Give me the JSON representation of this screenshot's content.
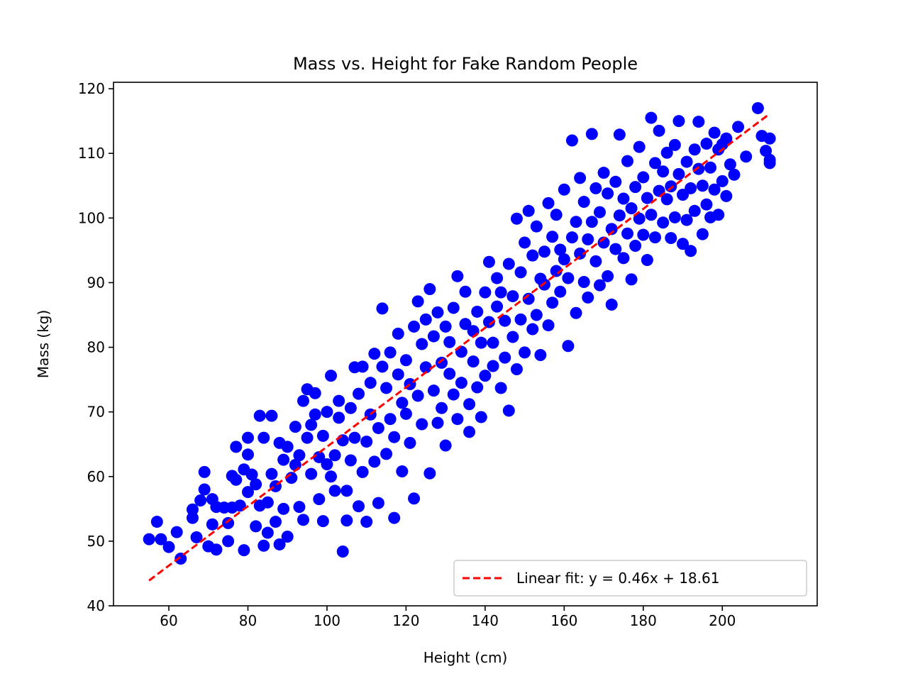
{
  "chart_data": {
    "type": "scatter",
    "title": "Mass vs. Height for Fake Random People",
    "xlabel": "Height (cm)",
    "ylabel": "Mass (kg)",
    "xlim": [
      46,
      224
    ],
    "ylim": [
      40,
      121
    ],
    "xticks": [
      60,
      80,
      100,
      120,
      140,
      160,
      180,
      200
    ],
    "yticks": [
      40,
      50,
      60,
      70,
      80,
      90,
      100,
      110,
      120
    ],
    "grid": false,
    "legend_position": "lower-right",
    "marker_color": "#0000ff",
    "fit_color": "#ff0000",
    "fit": {
      "label": "Linear fit: y = 0.46x + 18.61",
      "slope": 0.46,
      "intercept": 18.61,
      "x_range": [
        55,
        212
      ],
      "style": "dashed"
    },
    "points": [
      [
        55,
        50.3
      ],
      [
        57,
        53
      ],
      [
        58,
        50.3
      ],
      [
        60,
        49.1
      ],
      [
        62,
        51.4
      ],
      [
        63,
        47.3
      ],
      [
        66,
        54.9
      ],
      [
        66,
        53.6
      ],
      [
        67,
        50.6
      ],
      [
        68,
        56.3
      ],
      [
        69,
        58
      ],
      [
        69,
        60.7
      ],
      [
        70,
        49.2
      ],
      [
        71,
        52.6
      ],
      [
        71,
        56.5
      ],
      [
        72,
        55.3
      ],
      [
        72,
        48.7
      ],
      [
        74,
        55.2
      ],
      [
        75,
        50
      ],
      [
        75,
        52.8
      ],
      [
        76,
        60.1
      ],
      [
        76,
        55.2
      ],
      [
        77,
        64.6
      ],
      [
        77,
        59.5
      ],
      [
        78,
        55.5
      ],
      [
        79,
        48.6
      ],
      [
        79,
        61.1
      ],
      [
        80,
        66
      ],
      [
        80,
        63.4
      ],
      [
        80,
        57.6
      ],
      [
        81,
        60.3
      ],
      [
        82,
        58.8
      ],
      [
        82,
        52.3
      ],
      [
        83,
        55.5
      ],
      [
        83,
        69.4
      ],
      [
        84,
        66
      ],
      [
        84,
        49.3
      ],
      [
        85,
        51.3
      ],
      [
        85,
        56
      ],
      [
        86,
        60.4
      ],
      [
        86,
        69.4
      ],
      [
        87,
        53
      ],
      [
        87,
        58.5
      ],
      [
        88,
        65.2
      ],
      [
        88,
        49.5
      ],
      [
        89,
        62.6
      ],
      [
        89,
        55
      ],
      [
        90,
        50.7
      ],
      [
        90,
        64.6
      ],
      [
        91,
        59.8
      ],
      [
        92,
        67.7
      ],
      [
        92,
        61.8
      ],
      [
        93,
        55.3
      ],
      [
        93,
        63.3
      ],
      [
        94,
        71.7
      ],
      [
        94,
        53.3
      ],
      [
        95,
        73.5
      ],
      [
        95,
        66
      ],
      [
        96,
        60.4
      ],
      [
        96,
        68
      ],
      [
        97,
        69.6
      ],
      [
        97,
        72.9
      ],
      [
        98,
        56.5
      ],
      [
        98,
        63
      ],
      [
        99,
        53.1
      ],
      [
        99,
        66.3
      ],
      [
        100,
        70
      ],
      [
        100,
        61.9
      ],
      [
        101,
        75.6
      ],
      [
        101,
        60
      ],
      [
        102,
        63.3
      ],
      [
        102,
        57.8
      ],
      [
        103,
        71.7
      ],
      [
        103,
        69.1
      ],
      [
        104,
        65.6
      ],
      [
        104,
        48.4
      ],
      [
        105,
        57.8
      ],
      [
        105,
        53.2
      ],
      [
        106,
        70.6
      ],
      [
        106,
        62.5
      ],
      [
        107,
        76.9
      ],
      [
        107,
        66
      ],
      [
        108,
        55.4
      ],
      [
        108,
        72.8
      ],
      [
        109,
        77
      ],
      [
        109,
        60.7
      ],
      [
        110,
        65.4
      ],
      [
        110,
        53
      ],
      [
        111,
        69.6
      ],
      [
        111,
        74.5
      ],
      [
        112,
        79
      ],
      [
        112,
        62.3
      ],
      [
        113,
        67.5
      ],
      [
        113,
        55.9
      ],
      [
        114,
        86
      ],
      [
        114,
        77
      ],
      [
        115,
        73.7
      ],
      [
        115,
        63.5
      ],
      [
        116,
        79.2
      ],
      [
        116,
        68.9
      ],
      [
        117,
        66.1
      ],
      [
        117,
        53.6
      ],
      [
        118,
        75.8
      ],
      [
        118,
        82.1
      ],
      [
        119,
        60.8
      ],
      [
        119,
        71.4
      ],
      [
        120,
        78
      ],
      [
        120,
        69.7
      ],
      [
        121,
        74.3
      ],
      [
        121,
        65.2
      ],
      [
        122,
        83.2
      ],
      [
        122,
        56.6
      ],
      [
        123,
        87.1
      ],
      [
        123,
        72.5
      ],
      [
        124,
        80.5
      ],
      [
        124,
        68.1
      ],
      [
        125,
        84.3
      ],
      [
        125,
        76.9
      ],
      [
        126,
        89
      ],
      [
        126,
        60.5
      ],
      [
        127,
        73.3
      ],
      [
        127,
        81.7
      ],
      [
        128,
        68.3
      ],
      [
        128,
        85.4
      ],
      [
        129,
        77.6
      ],
      [
        129,
        70.6
      ],
      [
        130,
        83.2
      ],
      [
        130,
        64.8
      ],
      [
        131,
        75.9
      ],
      [
        131,
        80.8
      ],
      [
        132,
        72.7
      ],
      [
        132,
        86.1
      ],
      [
        133,
        68.9
      ],
      [
        133,
        91
      ],
      [
        134,
        79.3
      ],
      [
        134,
        74.5
      ],
      [
        135,
        83.6
      ],
      [
        135,
        88.6
      ],
      [
        136,
        71.2
      ],
      [
        136,
        66.9
      ],
      [
        137,
        77.8
      ],
      [
        137,
        82.5
      ],
      [
        138,
        85.5
      ],
      [
        138,
        73.8
      ],
      [
        139,
        80.7
      ],
      [
        139,
        69.2
      ],
      [
        140,
        88.5
      ],
      [
        140,
        75.6
      ],
      [
        141,
        83.9
      ],
      [
        141,
        93.2
      ],
      [
        142,
        80.7
      ],
      [
        142,
        77.1
      ],
      [
        143,
        90.7
      ],
      [
        143,
        86.3
      ],
      [
        144,
        73.7
      ],
      [
        144,
        88.5
      ],
      [
        145,
        84.1
      ],
      [
        145,
        78.4
      ],
      [
        146,
        92.9
      ],
      [
        146,
        70.2
      ],
      [
        147,
        81.6
      ],
      [
        147,
        87.9
      ],
      [
        148,
        99.9
      ],
      [
        148,
        76.6
      ],
      [
        149,
        84.3
      ],
      [
        149,
        91.6
      ],
      [
        150,
        96.2
      ],
      [
        150,
        79.2
      ],
      [
        151,
        101.1
      ],
      [
        151,
        87.5
      ],
      [
        152,
        94.2
      ],
      [
        152,
        82.8
      ],
      [
        153,
        98.7
      ],
      [
        153,
        85
      ],
      [
        154,
        90.6
      ],
      [
        154,
        78.8
      ],
      [
        155,
        94.8
      ],
      [
        155,
        89.7
      ],
      [
        156,
        102.3
      ],
      [
        156,
        83.4
      ],
      [
        157,
        97.1
      ],
      [
        157,
        86.9
      ],
      [
        158,
        91.8
      ],
      [
        158,
        100.5
      ],
      [
        159,
        88.6
      ],
      [
        159,
        95.1
      ],
      [
        160,
        93.6
      ],
      [
        160,
        104.4
      ],
      [
        161,
        80.2
      ],
      [
        161,
        90.7
      ],
      [
        162,
        97
      ],
      [
        162,
        112
      ],
      [
        163,
        85.3
      ],
      [
        163,
        99.4
      ],
      [
        164,
        94.5
      ],
      [
        164,
        106.2
      ],
      [
        165,
        90.1
      ],
      [
        165,
        102.5
      ],
      [
        166,
        96.7
      ],
      [
        166,
        87.7
      ],
      [
        167,
        113
      ],
      [
        167,
        99.4
      ],
      [
        168,
        93.3
      ],
      [
        168,
        104.6
      ],
      [
        169,
        89.6
      ],
      [
        169,
        100.9
      ],
      [
        170,
        96.2
      ],
      [
        170,
        107
      ],
      [
        171,
        91
      ],
      [
        171,
        103.8
      ],
      [
        172,
        98.3
      ],
      [
        172,
        86.6
      ],
      [
        173,
        95.2
      ],
      [
        173,
        105.6
      ],
      [
        174,
        100.4
      ],
      [
        174,
        112.9
      ],
      [
        175,
        93.8
      ],
      [
        175,
        103
      ],
      [
        176,
        97.6
      ],
      [
        176,
        108.8
      ],
      [
        177,
        90.5
      ],
      [
        177,
        101.5
      ],
      [
        178,
        104.8
      ],
      [
        178,
        95.7
      ],
      [
        179,
        99.9
      ],
      [
        179,
        111
      ],
      [
        180,
        97.4
      ],
      [
        180,
        106.3
      ],
      [
        181,
        103.1
      ],
      [
        181,
        93.5
      ],
      [
        182,
        115.5
      ],
      [
        182,
        100.5
      ],
      [
        183,
        108.5
      ],
      [
        183,
        97
      ],
      [
        184,
        104.2
      ],
      [
        184,
        113.5
      ],
      [
        185,
        99.3
      ],
      [
        185,
        107.2
      ],
      [
        186,
        102.9
      ],
      [
        186,
        110.1
      ],
      [
        187,
        96.9
      ],
      [
        187,
        104.9
      ],
      [
        188,
        111.3
      ],
      [
        188,
        100.1
      ],
      [
        189,
        106.8
      ],
      [
        189,
        115
      ],
      [
        190,
        96
      ],
      [
        190,
        103.6
      ],
      [
        191,
        108.7
      ],
      [
        191,
        99.7
      ],
      [
        192,
        104.6
      ],
      [
        192,
        94.9
      ],
      [
        193,
        110.6
      ],
      [
        193,
        101.1
      ],
      [
        194,
        107.6
      ],
      [
        194,
        114.9
      ],
      [
        195,
        97.5
      ],
      [
        195,
        105
      ],
      [
        196,
        111.5
      ],
      [
        196,
        102.1
      ],
      [
        197,
        107.8
      ],
      [
        197,
        100.1
      ],
      [
        198,
        113.2
      ],
      [
        198,
        104.4
      ],
      [
        199,
        110.6
      ],
      [
        199,
        100.5
      ],
      [
        200,
        105.7
      ],
      [
        200,
        111.4
      ],
      [
        201,
        103.4
      ],
      [
        201,
        112.3
      ],
      [
        202,
        108.3
      ],
      [
        203,
        106.7
      ],
      [
        204,
        114.1
      ],
      [
        206,
        109.5
      ],
      [
        209,
        117
      ],
      [
        210,
        112.7
      ],
      [
        211,
        110.4
      ],
      [
        212,
        112.3
      ],
      [
        212,
        109
      ],
      [
        212,
        108.5
      ]
    ]
  }
}
